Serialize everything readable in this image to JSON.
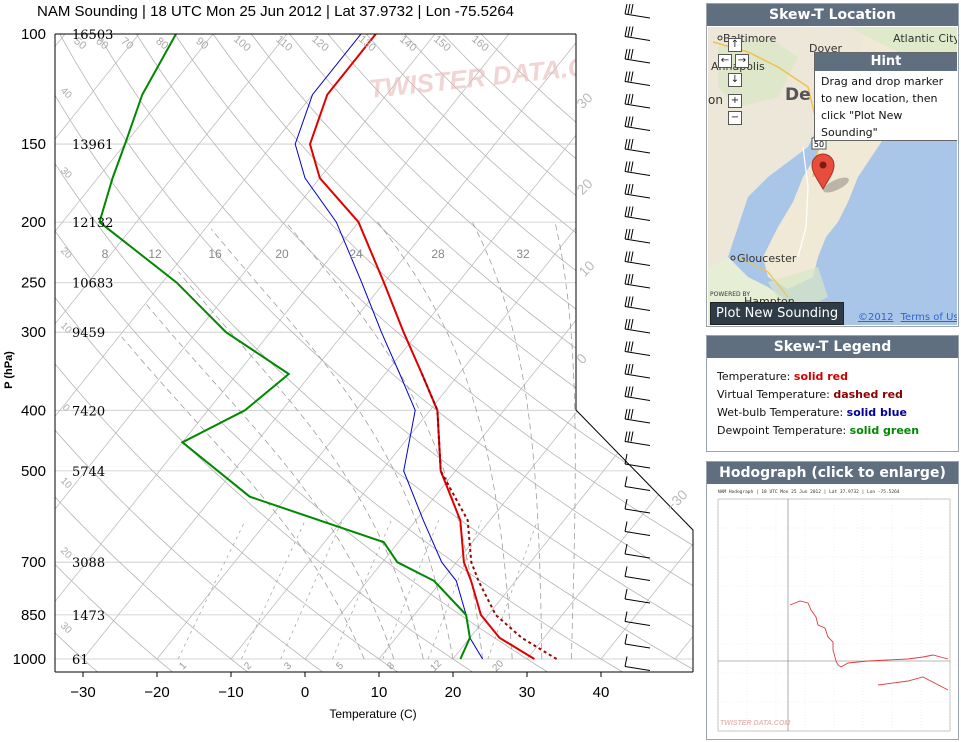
{
  "skewt": {
    "title": "NAM Sounding | 18 UTC Mon 25 Jun 2012 | Lat 37.9732 | Lon -75.5264",
    "ylabel": "P (hPa)",
    "xlabel": "Temperature (C)",
    "watermark": "TWISTER DATA.COM",
    "pressure_levels": [
      {
        "p": "100",
        "h": "16503"
      },
      {
        "p": "150",
        "h": "13961"
      },
      {
        "p": "200",
        "h": "12132"
      },
      {
        "p": "250",
        "h": "10683"
      },
      {
        "p": "300",
        "h": "9459"
      },
      {
        "p": "400",
        "h": "7420"
      },
      {
        "p": "500",
        "h": "5744"
      },
      {
        "p": "700",
        "h": "3088"
      },
      {
        "p": "850",
        "h": "1473"
      },
      {
        "p": "1000",
        "h": "61"
      }
    ],
    "temperature_ticks": [
      "−30",
      "−20",
      "−10",
      "0",
      "10",
      "20",
      "30",
      "40"
    ],
    "mixing_ratio_labels": [
      "8",
      "12",
      "16",
      "20",
      "24",
      "28",
      "32"
    ],
    "mixing_ratio_bottom_labels": [
      "1",
      "2",
      "3",
      "5",
      "8",
      "12",
      "20"
    ],
    "isotherm_labels": [
      "−30",
      "0",
      "10",
      "20",
      "30"
    ],
    "dry_adiabat_labels": [
      "50",
      "60",
      "70",
      "80",
      "90",
      "100",
      "110",
      "120",
      "130",
      "140",
      "150",
      "160"
    ],
    "left_axis_small_labels": [
      "40",
      "30",
      "20",
      "10",
      "0",
      "10",
      "20",
      "30"
    ]
  },
  "chart_data": {
    "type": "line",
    "title": "NAM Sounding | 18 UTC Mon 25 Jun 2012 | Lat 37.9732 | Lon -75.5264",
    "xlabel": "Temperature (C)",
    "ylabel": "P (hPa)",
    "xlim": [
      -35,
      45
    ],
    "ylim": [
      1000,
      100
    ],
    "y_scale": "log",
    "series": [
      {
        "name": "Temperature",
        "color": "#e00000",
        "style": "solid",
        "points": [
          [
            31,
            1000
          ],
          [
            24,
            925
          ],
          [
            19,
            850
          ],
          [
            14,
            750
          ],
          [
            11,
            700
          ],
          [
            6,
            600
          ],
          [
            -2,
            500
          ],
          [
            -9,
            400
          ],
          [
            -15,
            350
          ],
          [
            -22,
            300
          ],
          [
            -30,
            250
          ],
          [
            -40,
            200
          ],
          [
            -50,
            170
          ],
          [
            -55,
            150
          ],
          [
            -58,
            125
          ],
          [
            -58,
            100
          ]
        ]
      },
      {
        "name": "Virtual Temperature",
        "color": "#a00000",
        "style": "dashed",
        "points": [
          [
            34,
            1000
          ],
          [
            27,
            925
          ],
          [
            21,
            850
          ],
          [
            15,
            750
          ],
          [
            12,
            700
          ],
          [
            7,
            600
          ],
          [
            -2,
            500
          ],
          [
            -9,
            400
          ],
          [
            -15,
            350
          ]
        ]
      },
      {
        "name": "Wet-bulb Temperature",
        "color": "#0000cc",
        "style": "solid",
        "points": [
          [
            24,
            1000
          ],
          [
            20,
            925
          ],
          [
            17,
            850
          ],
          [
            12,
            750
          ],
          [
            8,
            700
          ],
          [
            1,
            600
          ],
          [
            -7,
            500
          ],
          [
            -12,
            400
          ],
          [
            -18,
            350
          ],
          [
            -25,
            300
          ],
          [
            -33,
            250
          ],
          [
            -43,
            200
          ],
          [
            -52,
            170
          ],
          [
            -57,
            150
          ],
          [
            -60,
            125
          ],
          [
            -60,
            100
          ]
        ]
      },
      {
        "name": "Dewpoint Temperature",
        "color": "#008800",
        "style": "solid",
        "points": [
          [
            21,
            1000
          ],
          [
            20,
            925
          ],
          [
            17,
            850
          ],
          [
            9,
            750
          ],
          [
            2,
            700
          ],
          [
            -2,
            650
          ],
          [
            -25,
            550
          ],
          [
            -40,
            450
          ],
          [
            -35,
            400
          ],
          [
            -33,
            350
          ],
          [
            -46,
            300
          ],
          [
            -58,
            250
          ],
          [
            -75,
            200
          ],
          [
            -78,
            170
          ],
          [
            -80,
            150
          ],
          [
            -83,
            125
          ],
          [
            -85,
            100
          ]
        ]
      }
    ]
  },
  "location_panel": {
    "title": "Skew-T Location",
    "hint_title": "Hint",
    "hint_text": "Drag and drop marker to new location, then click \"Plot New Sounding\"",
    "plot_button": "Plot New Sounding",
    "map_labels": {
      "baltimore": "Baltimore",
      "atlantic_city": "Atlantic City",
      "dover": "Dover",
      "annapolis": "Annapolis",
      "de": "De",
      "on": "on",
      "gloucester": "Gloucester",
      "hampton": "Hampton",
      "route": "50",
      "powered_by": "POWERED BY",
      "copyright": "©2012",
      "terms": "Terms of Use"
    },
    "nav_icons": {
      "up": "↑",
      "left": "←",
      "right": "→",
      "down": "↓",
      "zoom_in": "+",
      "zoom_out": "−"
    }
  },
  "legend_panel": {
    "title": "Skew-T Legend",
    "items": [
      {
        "label": "Temperature:",
        "style": "solid red",
        "color": "#cc0000"
      },
      {
        "label": "Virtual Temperature:",
        "style": "dashed red",
        "color": "#880000"
      },
      {
        "label": "Wet-bulb Temperature:",
        "style": "solid blue",
        "color": "#000099"
      },
      {
        "label": "Dewpoint Temperature:",
        "style": "solid green",
        "color": "#008800"
      }
    ]
  },
  "hodograph_panel": {
    "title": "Hodograph (click to enlarge)",
    "caption": "NAM Hodograph | 18 UTC Mon 25 Jun 2012 | Lat 37.9732 | Lon -75.5264",
    "watermark": "TWISTER DATA.COM"
  }
}
